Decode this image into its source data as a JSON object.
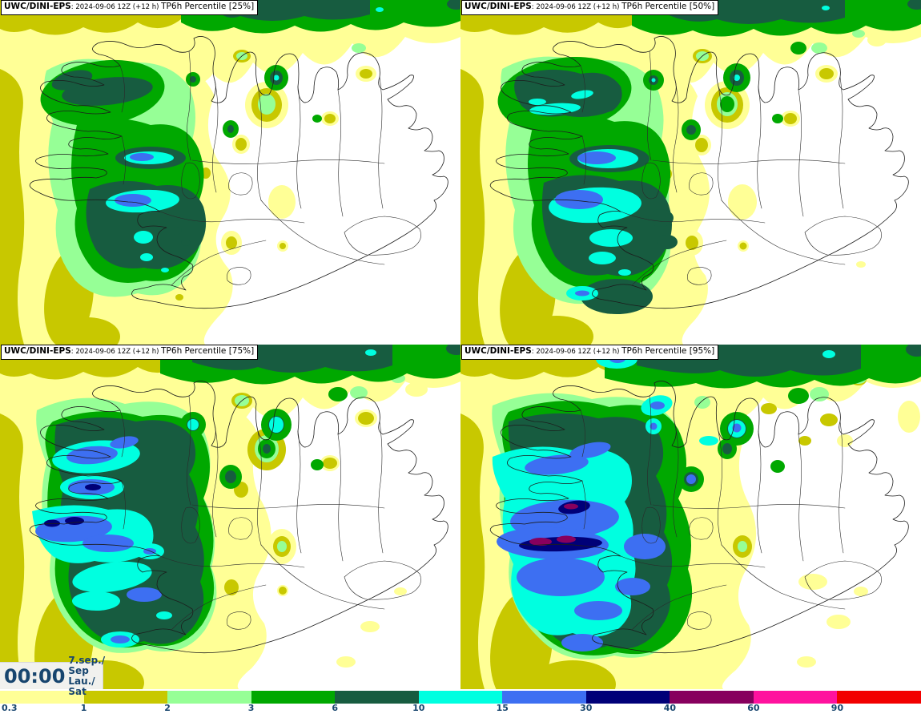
{
  "panels": [
    {
      "model": "UWC/DINI-EPS",
      "run": ": 2024-09-06 12Z (+12 h) ",
      "product": "TP6h Percentile [25%]"
    },
    {
      "model": "UWC/DINI-EPS",
      "run": ": 2024-09-06 12Z (+12 h) ",
      "product": "TP6h Percentile [50%]"
    },
    {
      "model": "UWC/DINI-EPS",
      "run": ": 2024-09-06 12Z (+12 h) ",
      "product": "TP6h Percentile [75%]"
    },
    {
      "model": "UWC/DINI-EPS",
      "run": ": 2024-09-06 12Z (+12 h) ",
      "product": "TP6h Percentile [95%]"
    }
  ],
  "clock": {
    "time": "00:00",
    "date_line1": "7.sep./ Sep",
    "date_line2": "Lau./ Sat"
  },
  "colorbar": {
    "tick_labels": [
      "0.3",
      "1",
      "2",
      "3",
      "6",
      "10",
      "15",
      "30",
      "40",
      "60",
      "90"
    ],
    "colors": [
      "#FFFF96",
      "#C8C800",
      "#96FF96",
      "#00A800",
      "#175C40",
      "#00FFE0",
      "#3D6FF2",
      "#000078",
      "#87005E",
      "#FF129E",
      "#F20000"
    ],
    "tick_color": "#17456e"
  }
}
